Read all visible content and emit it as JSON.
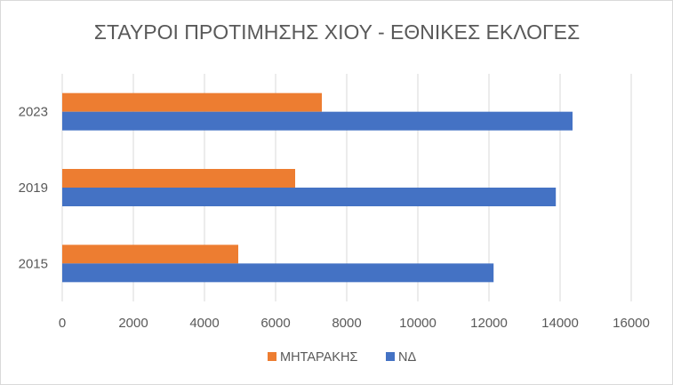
{
  "chart_data": {
    "type": "bar",
    "orientation": "horizontal",
    "title": "ΣΤΑΥΡΟΙ ΠΡΟΤΙΜΗΣΗΣ ΧΙΟΥ - ΕΘΝΙΚΕΣ ΕΚΛΟΓΕΣ",
    "xlabel": "",
    "ylabel": "",
    "categories": [
      "2015",
      "2019",
      "2023"
    ],
    "series": [
      {
        "name": "ΜΗΤΑΡΑΚΗΣ",
        "color": "#ed7d31",
        "values": [
          4950,
          6550,
          7300
        ]
      },
      {
        "name": "ΝΔ",
        "color": "#4472c4",
        "values": [
          12130,
          13880,
          14350
        ]
      }
    ],
    "xlim": [
      0,
      16000
    ],
    "xticks": [
      "0",
      "2000",
      "4000",
      "6000",
      "8000",
      "10000",
      "12000",
      "14000",
      "16000"
    ],
    "grid": "vertical",
    "legend_position": "bottom"
  }
}
